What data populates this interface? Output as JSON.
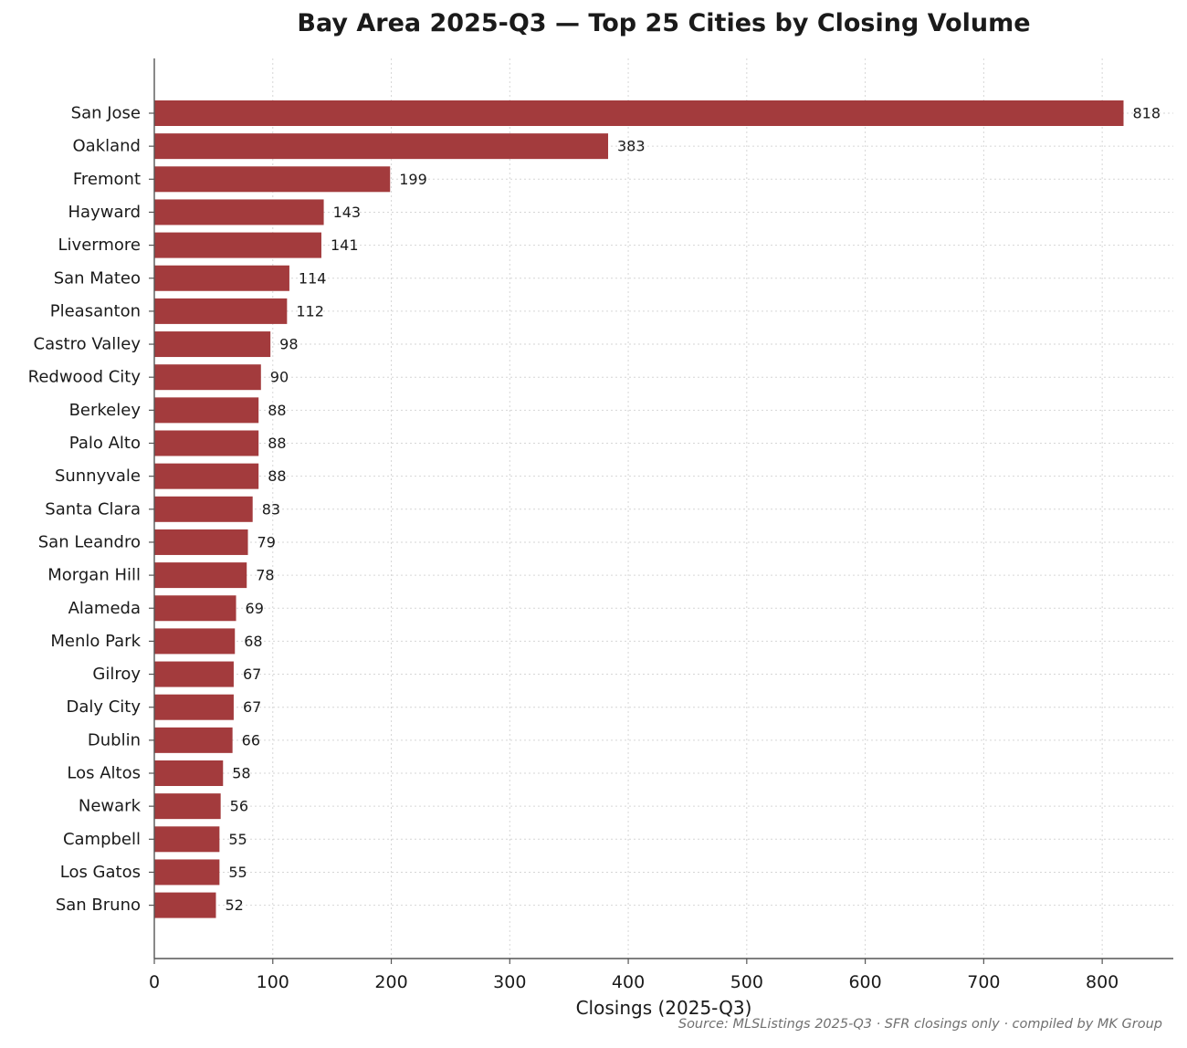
{
  "chart_data": {
    "type": "bar",
    "orientation": "horizontal",
    "title": "Bay Area 2025-Q3 — Top 25 Cities by Closing Volume",
    "xlabel": "Closings (2025-Q3)",
    "ylabel": "",
    "xlim": [
      0,
      860
    ],
    "xticks": [
      0,
      100,
      200,
      300,
      400,
      500,
      600,
      700,
      800
    ],
    "grid": true,
    "bar_color": "#a33b3d",
    "categories": [
      "San Jose",
      "Oakland",
      "Fremont",
      "Hayward",
      "Livermore",
      "San Mateo",
      "Pleasanton",
      "Castro Valley",
      "Redwood City",
      "Berkeley",
      "Palo Alto",
      "Sunnyvale",
      "Santa Clara",
      "San Leandro",
      "Morgan Hill",
      "Alameda",
      "Menlo Park",
      "Gilroy",
      "Daly City",
      "Dublin",
      "Los Altos",
      "Newark",
      "Campbell",
      "Los Gatos",
      "San Bruno"
    ],
    "values": [
      818,
      383,
      199,
      143,
      141,
      114,
      112,
      98,
      90,
      88,
      88,
      88,
      83,
      79,
      78,
      69,
      68,
      67,
      67,
      66,
      58,
      56,
      55,
      55,
      52
    ]
  },
  "source_note": "Source: MLSListings 2025-Q3 · SFR closings only · compiled by MK Group"
}
